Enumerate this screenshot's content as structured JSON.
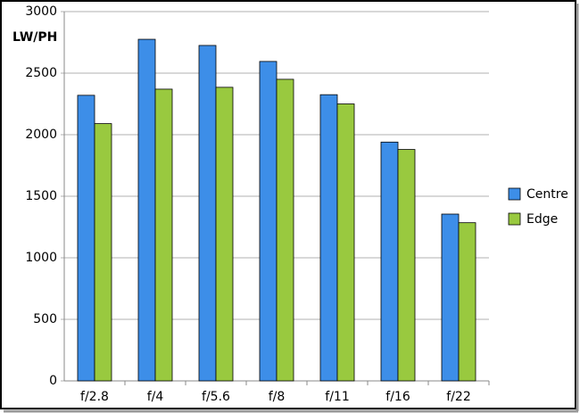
{
  "chart_data": {
    "type": "bar",
    "y_label": "LW/PH",
    "categories": [
      "f/2.8",
      "f/4",
      "f/5.6",
      "f/8",
      "f/11",
      "f/16",
      "f/22"
    ],
    "series": [
      {
        "name": "Centre",
        "color": "#3d8ee8",
        "values": [
          2320,
          2775,
          2725,
          2595,
          2325,
          1940,
          1355
        ]
      },
      {
        "name": "Edge",
        "color": "#99c93f",
        "values": [
          2090,
          2370,
          2385,
          2450,
          2250,
          1880,
          1285
        ]
      }
    ],
    "ylim": [
      0,
      3000
    ],
    "yticks": [
      0,
      500,
      1000,
      1500,
      2000,
      2500,
      3000
    ],
    "grid": true,
    "legend": "right"
  }
}
